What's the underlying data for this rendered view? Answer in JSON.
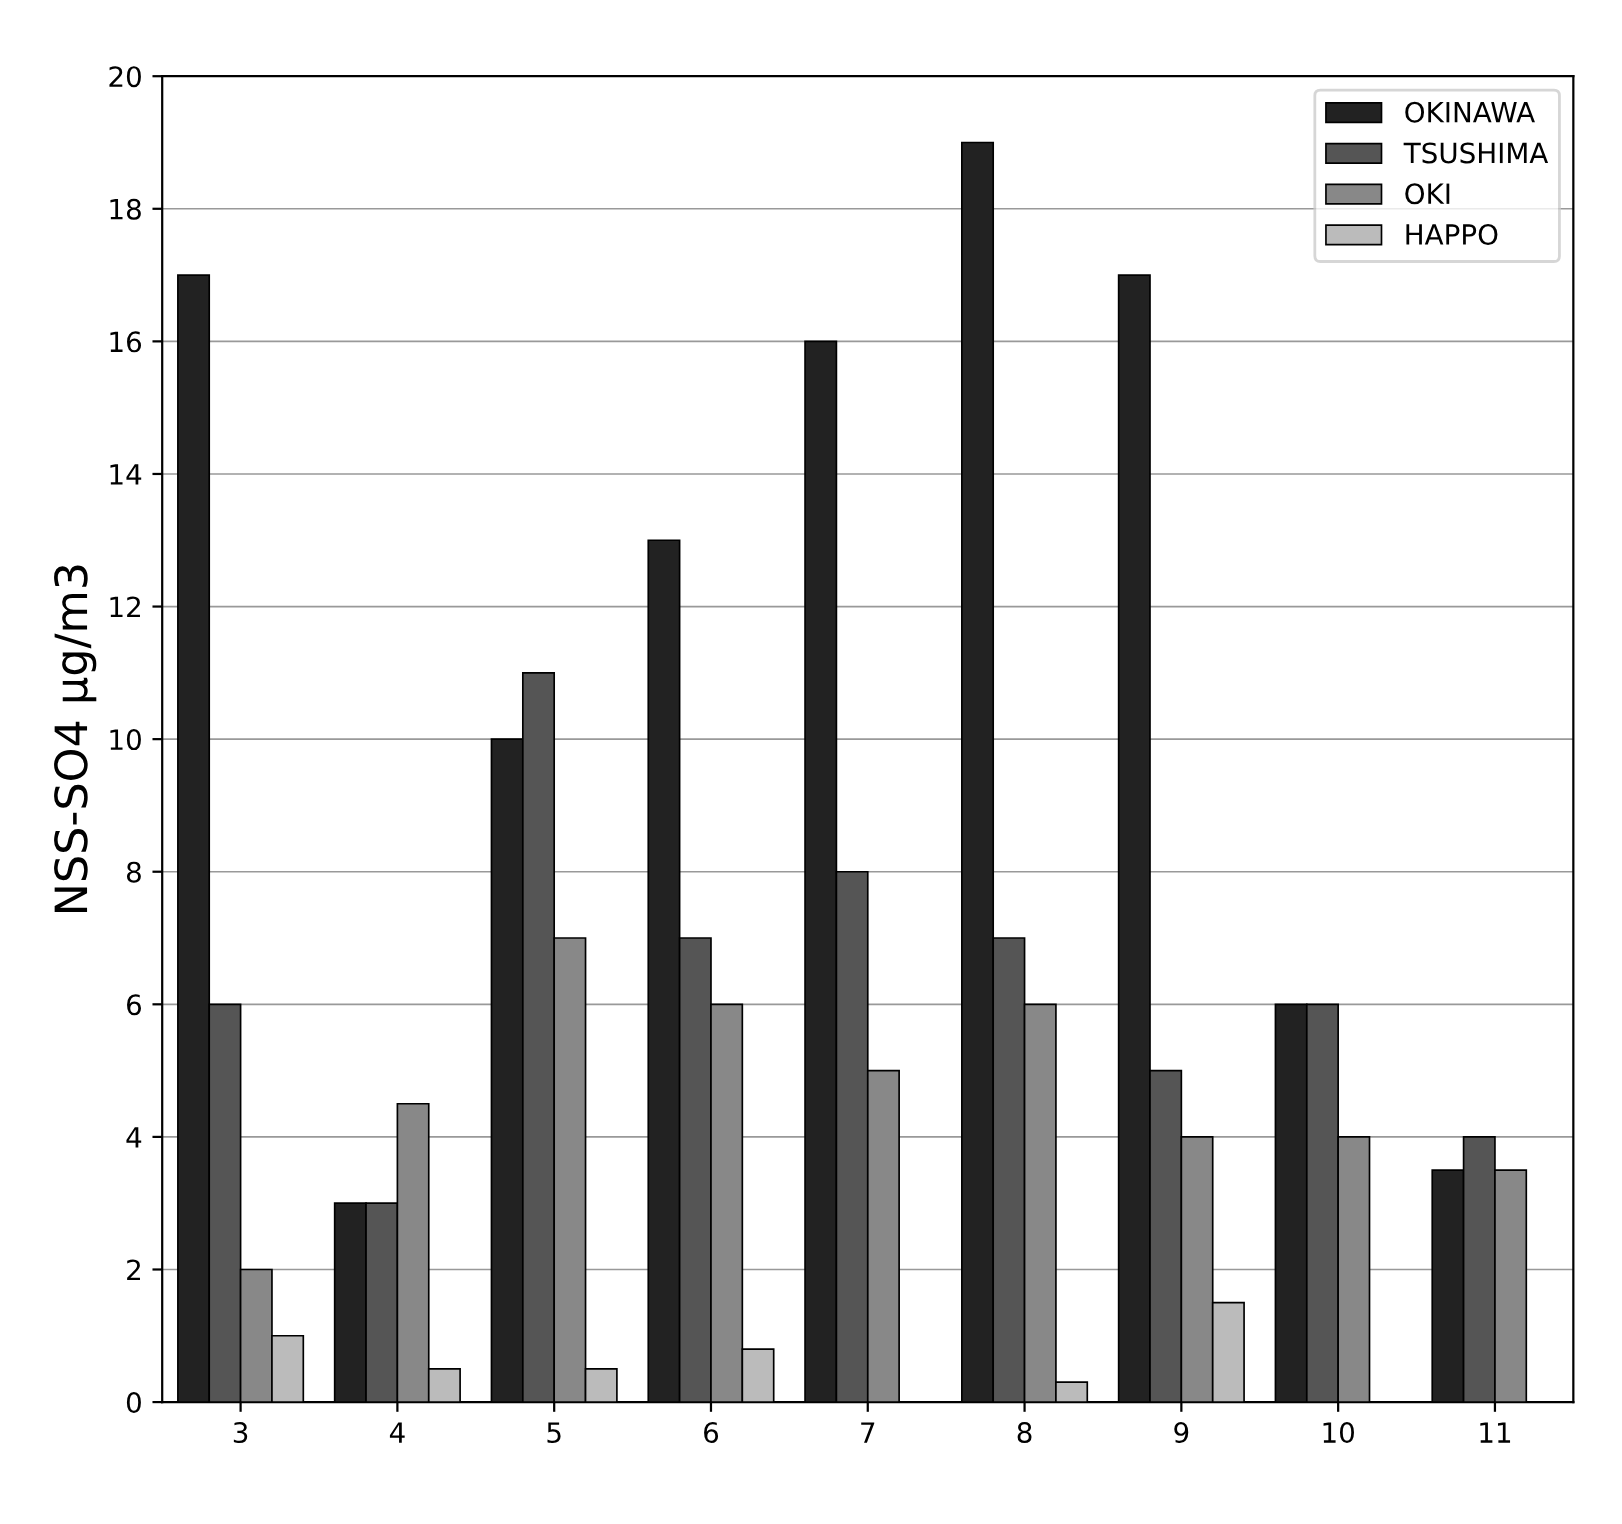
{
  "chart_data": {
    "type": "bar",
    "ylabel": "NSS-SO4 μg/m3",
    "categories": [
      "3",
      "4",
      "5",
      "6",
      "7",
      "8",
      "9",
      "10",
      "11"
    ],
    "series": [
      {
        "name": "OKINAWA",
        "color": "#222222",
        "values": [
          17,
          3,
          10,
          13,
          16,
          19,
          17,
          6,
          3.5
        ]
      },
      {
        "name": "TSUSHIMA",
        "color": "#555555",
        "values": [
          6,
          3,
          11,
          7,
          8,
          7,
          5,
          6,
          4
        ]
      },
      {
        "name": "OKI",
        "color": "#888888",
        "values": [
          2,
          4.5,
          7,
          6,
          5,
          6,
          4,
          4,
          3.5
        ]
      },
      {
        "name": "HAPPO",
        "color": "#bbbbbb",
        "values": [
          1,
          0.5,
          0.5,
          0.8,
          null,
          0.3,
          1.5,
          null,
          null
        ]
      }
    ],
    "ylim": [
      0,
      20
    ],
    "yticks": [
      0,
      2,
      4,
      6,
      8,
      10,
      12,
      14,
      16,
      18,
      20
    ],
    "grid": "y",
    "legend": "top right"
  }
}
